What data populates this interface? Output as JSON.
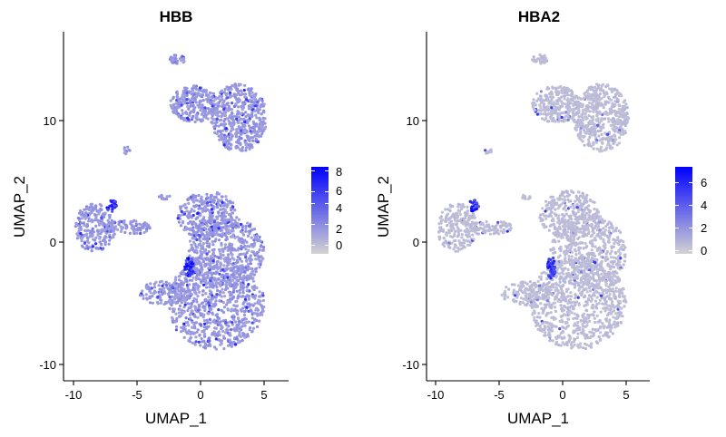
{
  "chart_data": [
    {
      "type": "scatter",
      "title": "HBB",
      "xlabel": "UMAP_1",
      "ylabel": "UMAP_2",
      "xlim": [
        -10.8,
        6.8
      ],
      "ylim": [
        -11.3,
        17.3
      ],
      "xticks": [
        -10,
        -5,
        0,
        5
      ],
      "xtick_labels": [
        "-10",
        "-5",
        "0",
        "5"
      ],
      "yticks": [
        -10,
        0,
        10
      ],
      "ytick_labels": [
        "-10",
        "0",
        "10"
      ],
      "grid": false,
      "color_scale": {
        "low": "#d3d3d3",
        "high": "#0000ff",
        "min": 0,
        "max": 8.3
      },
      "legend": {
        "position": "right",
        "ticks": [
          0,
          2,
          4,
          6,
          8
        ],
        "tick_labels": [
          "0",
          "2",
          "4",
          "6",
          "8"
        ]
      },
      "clusters": [
        {
          "cx": -1.8,
          "cy": 15.0,
          "rx": 0.6,
          "ry": 0.4,
          "n": 30
        },
        {
          "cx": 3.0,
          "cy": 10.2,
          "rx": 2.2,
          "ry": 2.8,
          "n": 520
        },
        {
          "cx": -0.5,
          "cy": 11.3,
          "rx": 1.9,
          "ry": 1.5,
          "n": 260
        },
        {
          "cx": -5.8,
          "cy": 7.5,
          "rx": 0.4,
          "ry": 0.3,
          "n": 10
        },
        {
          "cx": -8.3,
          "cy": 1.2,
          "rx": 1.6,
          "ry": 2.0,
          "n": 230
        },
        {
          "cx": -5.8,
          "cy": 1.2,
          "rx": 1.9,
          "ry": 0.6,
          "n": 90
        },
        {
          "cx": -2.9,
          "cy": 3.7,
          "rx": 0.5,
          "ry": 0.2,
          "n": 12
        },
        {
          "cx": 0.6,
          "cy": 2.2,
          "rx": 2.4,
          "ry": 2.0,
          "n": 320
        },
        {
          "cx": 2.0,
          "cy": -0.8,
          "rx": 3.0,
          "ry": 3.0,
          "n": 520
        },
        {
          "cx": 1.2,
          "cy": -5.0,
          "rx": 3.8,
          "ry": 3.8,
          "n": 820
        },
        {
          "cx": -2.8,
          "cy": -4.2,
          "rx": 2.0,
          "ry": 1.0,
          "n": 140
        },
        {
          "cx": -0.9,
          "cy": -2.1,
          "rx": 0.35,
          "ry": 0.9,
          "n": 45,
          "hot": true
        },
        {
          "cx": -7.0,
          "cy": 3.0,
          "rx": 0.4,
          "ry": 0.5,
          "n": 25,
          "hot": true
        }
      ]
    },
    {
      "type": "scatter",
      "title": "HBA2",
      "xlabel": "UMAP_1",
      "ylabel": "UMAP_2",
      "xlim": [
        -10.8,
        6.8
      ],
      "ylim": [
        -11.3,
        17.3
      ],
      "xticks": [
        -10,
        -5,
        0,
        5
      ],
      "xtick_labels": [
        "-10",
        "-5",
        "0",
        "5"
      ],
      "yticks": [
        -10,
        0,
        10
      ],
      "ytick_labels": [
        "-10",
        "0",
        "10"
      ],
      "grid": false,
      "color_scale": {
        "low": "#d3d3d3",
        "high": "#0000ff",
        "min": 0,
        "max": 7.0
      },
      "legend": {
        "position": "right",
        "ticks": [
          0,
          2,
          4,
          6
        ],
        "tick_labels": [
          "0",
          "2",
          "4",
          "6"
        ]
      },
      "clusters": [
        {
          "cx": -1.8,
          "cy": 15.0,
          "rx": 0.6,
          "ry": 0.4,
          "n": 30
        },
        {
          "cx": 3.0,
          "cy": 10.2,
          "rx": 2.2,
          "ry": 2.8,
          "n": 520
        },
        {
          "cx": -0.5,
          "cy": 11.3,
          "rx": 1.9,
          "ry": 1.5,
          "n": 260
        },
        {
          "cx": -5.8,
          "cy": 7.5,
          "rx": 0.4,
          "ry": 0.3,
          "n": 10
        },
        {
          "cx": -8.3,
          "cy": 1.2,
          "rx": 1.6,
          "ry": 2.0,
          "n": 230
        },
        {
          "cx": -5.8,
          "cy": 1.2,
          "rx": 1.9,
          "ry": 0.6,
          "n": 90
        },
        {
          "cx": -2.9,
          "cy": 3.7,
          "rx": 0.5,
          "ry": 0.2,
          "n": 12
        },
        {
          "cx": 0.6,
          "cy": 2.2,
          "rx": 2.4,
          "ry": 2.0,
          "n": 320
        },
        {
          "cx": 2.0,
          "cy": -0.8,
          "rx": 3.0,
          "ry": 3.0,
          "n": 520
        },
        {
          "cx": 1.2,
          "cy": -5.0,
          "rx": 3.8,
          "ry": 3.8,
          "n": 820
        },
        {
          "cx": -2.8,
          "cy": -4.2,
          "rx": 2.0,
          "ry": 1.0,
          "n": 140
        },
        {
          "cx": -0.9,
          "cy": -2.1,
          "rx": 0.35,
          "ry": 0.9,
          "n": 45,
          "hot": true
        },
        {
          "cx": -7.0,
          "cy": 3.0,
          "rx": 0.4,
          "ry": 0.5,
          "n": 25,
          "hot": true
        }
      ]
    }
  ]
}
